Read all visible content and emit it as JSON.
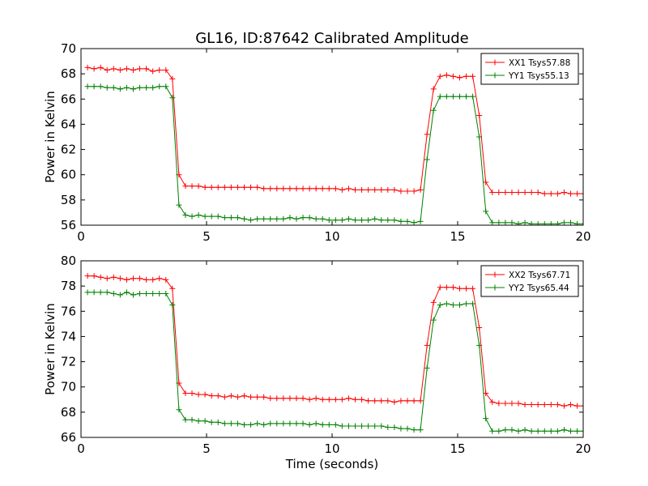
{
  "figure": {
    "title": "GL16, ID:87642 Calibrated Amplitude",
    "xlabel": "Time (seconds)"
  },
  "chart_data": [
    {
      "type": "line",
      "ylabel": "Power in Kelvin",
      "xlim": [
        0,
        20
      ],
      "ylim": [
        56,
        70
      ],
      "xticks": [
        0,
        5,
        10,
        15,
        20
      ],
      "yticks": [
        56,
        58,
        60,
        62,
        64,
        66,
        68,
        70
      ],
      "grid": false,
      "legend_position": "top-right",
      "x": [
        0.26,
        0.52,
        0.78,
        1.04,
        1.3,
        1.56,
        1.82,
        2.08,
        2.34,
        2.6,
        2.86,
        3.12,
        3.38,
        3.64,
        3.9,
        4.16,
        4.42,
        4.68,
        4.94,
        5.2,
        5.46,
        5.72,
        5.98,
        6.24,
        6.5,
        6.76,
        7.02,
        7.28,
        7.54,
        7.8,
        8.06,
        8.32,
        8.58,
        8.84,
        9.1,
        9.36,
        9.62,
        9.88,
        10.14,
        10.4,
        10.66,
        10.92,
        11.18,
        11.44,
        11.7,
        11.96,
        12.22,
        12.48,
        12.74,
        13.0,
        13.26,
        13.52,
        13.78,
        14.04,
        14.3,
        14.56,
        14.82,
        15.08,
        15.34,
        15.6,
        15.86,
        16.12,
        16.38,
        16.64,
        16.9,
        17.16,
        17.42,
        17.68,
        17.94,
        18.2,
        18.46,
        18.72,
        18.98,
        19.24,
        19.5,
        19.76,
        20.02
      ],
      "series": [
        {
          "name": "XX1 Tsys57.88",
          "color": "#ff0000",
          "values": [
            68.5,
            68.4,
            68.5,
            68.3,
            68.4,
            68.3,
            68.4,
            68.3,
            68.4,
            68.4,
            68.2,
            68.3,
            68.3,
            67.6,
            60.0,
            59.1,
            59.1,
            59.1,
            59.0,
            59.0,
            59.0,
            59.0,
            59.0,
            59.0,
            59.0,
            59.0,
            59.0,
            58.9,
            58.9,
            58.9,
            58.9,
            58.9,
            58.9,
            58.9,
            58.9,
            58.9,
            58.9,
            58.9,
            58.9,
            58.8,
            58.9,
            58.8,
            58.8,
            58.8,
            58.8,
            58.8,
            58.8,
            58.8,
            58.7,
            58.7,
            58.7,
            58.8,
            63.2,
            66.8,
            67.8,
            67.9,
            67.8,
            67.7,
            67.8,
            67.8,
            64.7,
            59.4,
            58.6,
            58.6,
            58.6,
            58.6,
            58.6,
            58.6,
            58.6,
            58.6,
            58.5,
            58.5,
            58.5,
            58.6,
            58.5,
            58.5,
            58.5
          ]
        },
        {
          "name": "YY1 Tsys55.13",
          "color": "#008000",
          "values": [
            67.0,
            67.0,
            67.0,
            66.9,
            66.9,
            66.8,
            66.9,
            66.8,
            66.9,
            66.9,
            66.9,
            67.0,
            67.0,
            66.1,
            57.6,
            56.8,
            56.7,
            56.8,
            56.7,
            56.7,
            56.7,
            56.6,
            56.6,
            56.6,
            56.5,
            56.4,
            56.5,
            56.5,
            56.5,
            56.5,
            56.5,
            56.6,
            56.5,
            56.6,
            56.6,
            56.5,
            56.5,
            56.4,
            56.4,
            56.4,
            56.5,
            56.4,
            56.4,
            56.4,
            56.5,
            56.4,
            56.4,
            56.4,
            56.3,
            56.3,
            56.2,
            56.3,
            61.2,
            65.1,
            66.2,
            66.2,
            66.2,
            66.2,
            66.2,
            66.2,
            63.0,
            57.1,
            56.2,
            56.2,
            56.2,
            56.2,
            56.1,
            56.2,
            56.1,
            56.1,
            56.1,
            56.1,
            56.1,
            56.2,
            56.2,
            56.1,
            56.1
          ]
        }
      ]
    },
    {
      "type": "line",
      "ylabel": "Power in Kelvin",
      "xlim": [
        0,
        20
      ],
      "ylim": [
        66,
        80
      ],
      "xticks": [
        0,
        5,
        10,
        15,
        20
      ],
      "yticks": [
        66,
        68,
        70,
        72,
        74,
        76,
        78,
        80
      ],
      "grid": false,
      "legend_position": "top-right",
      "x": [
        0.26,
        0.52,
        0.78,
        1.04,
        1.3,
        1.56,
        1.82,
        2.08,
        2.34,
        2.6,
        2.86,
        3.12,
        3.38,
        3.64,
        3.9,
        4.16,
        4.42,
        4.68,
        4.94,
        5.2,
        5.46,
        5.72,
        5.98,
        6.24,
        6.5,
        6.76,
        7.02,
        7.28,
        7.54,
        7.8,
        8.06,
        8.32,
        8.58,
        8.84,
        9.1,
        9.36,
        9.62,
        9.88,
        10.14,
        10.4,
        10.66,
        10.92,
        11.18,
        11.44,
        11.7,
        11.96,
        12.22,
        12.48,
        12.74,
        13.0,
        13.26,
        13.52,
        13.78,
        14.04,
        14.3,
        14.56,
        14.82,
        15.08,
        15.34,
        15.6,
        15.86,
        16.12,
        16.38,
        16.64,
        16.9,
        17.16,
        17.42,
        17.68,
        17.94,
        18.2,
        18.46,
        18.72,
        18.98,
        19.24,
        19.5,
        19.76,
        20.02
      ],
      "series": [
        {
          "name": "XX2 Tsys67.71",
          "color": "#ff0000",
          "values": [
            78.8,
            78.8,
            78.7,
            78.6,
            78.7,
            78.6,
            78.5,
            78.6,
            78.6,
            78.5,
            78.5,
            78.6,
            78.5,
            77.8,
            70.3,
            69.5,
            69.5,
            69.4,
            69.4,
            69.3,
            69.3,
            69.2,
            69.3,
            69.2,
            69.3,
            69.2,
            69.2,
            69.2,
            69.1,
            69.1,
            69.1,
            69.1,
            69.1,
            69.1,
            69.0,
            69.1,
            69.0,
            69.0,
            69.0,
            69.0,
            69.1,
            69.0,
            69.0,
            68.9,
            68.9,
            68.9,
            68.9,
            68.8,
            68.9,
            68.9,
            68.9,
            68.9,
            73.3,
            76.7,
            77.9,
            77.9,
            77.9,
            77.8,
            77.8,
            77.8,
            74.7,
            69.5,
            68.8,
            68.7,
            68.7,
            68.7,
            68.7,
            68.6,
            68.6,
            68.6,
            68.6,
            68.6,
            68.6,
            68.5,
            68.6,
            68.5,
            68.5
          ]
        },
        {
          "name": "YY2 Tsys65.44",
          "color": "#008000",
          "values": [
            77.5,
            77.5,
            77.5,
            77.5,
            77.4,
            77.3,
            77.5,
            77.3,
            77.4,
            77.4,
            77.4,
            77.4,
            77.4,
            76.5,
            68.2,
            67.4,
            67.4,
            67.3,
            67.3,
            67.2,
            67.2,
            67.1,
            67.1,
            67.1,
            67.0,
            67.0,
            67.1,
            67.0,
            67.1,
            67.1,
            67.1,
            67.1,
            67.1,
            67.1,
            67.0,
            67.1,
            67.0,
            67.0,
            67.0,
            66.9,
            66.9,
            66.9,
            66.9,
            66.9,
            66.9,
            66.9,
            66.8,
            66.8,
            66.7,
            66.7,
            66.6,
            66.6,
            71.5,
            75.3,
            76.5,
            76.6,
            76.5,
            76.5,
            76.6,
            76.6,
            73.3,
            67.5,
            66.5,
            66.5,
            66.6,
            66.6,
            66.5,
            66.6,
            66.5,
            66.5,
            66.5,
            66.5,
            66.5,
            66.6,
            66.5,
            66.5,
            66.5
          ]
        }
      ]
    }
  ]
}
